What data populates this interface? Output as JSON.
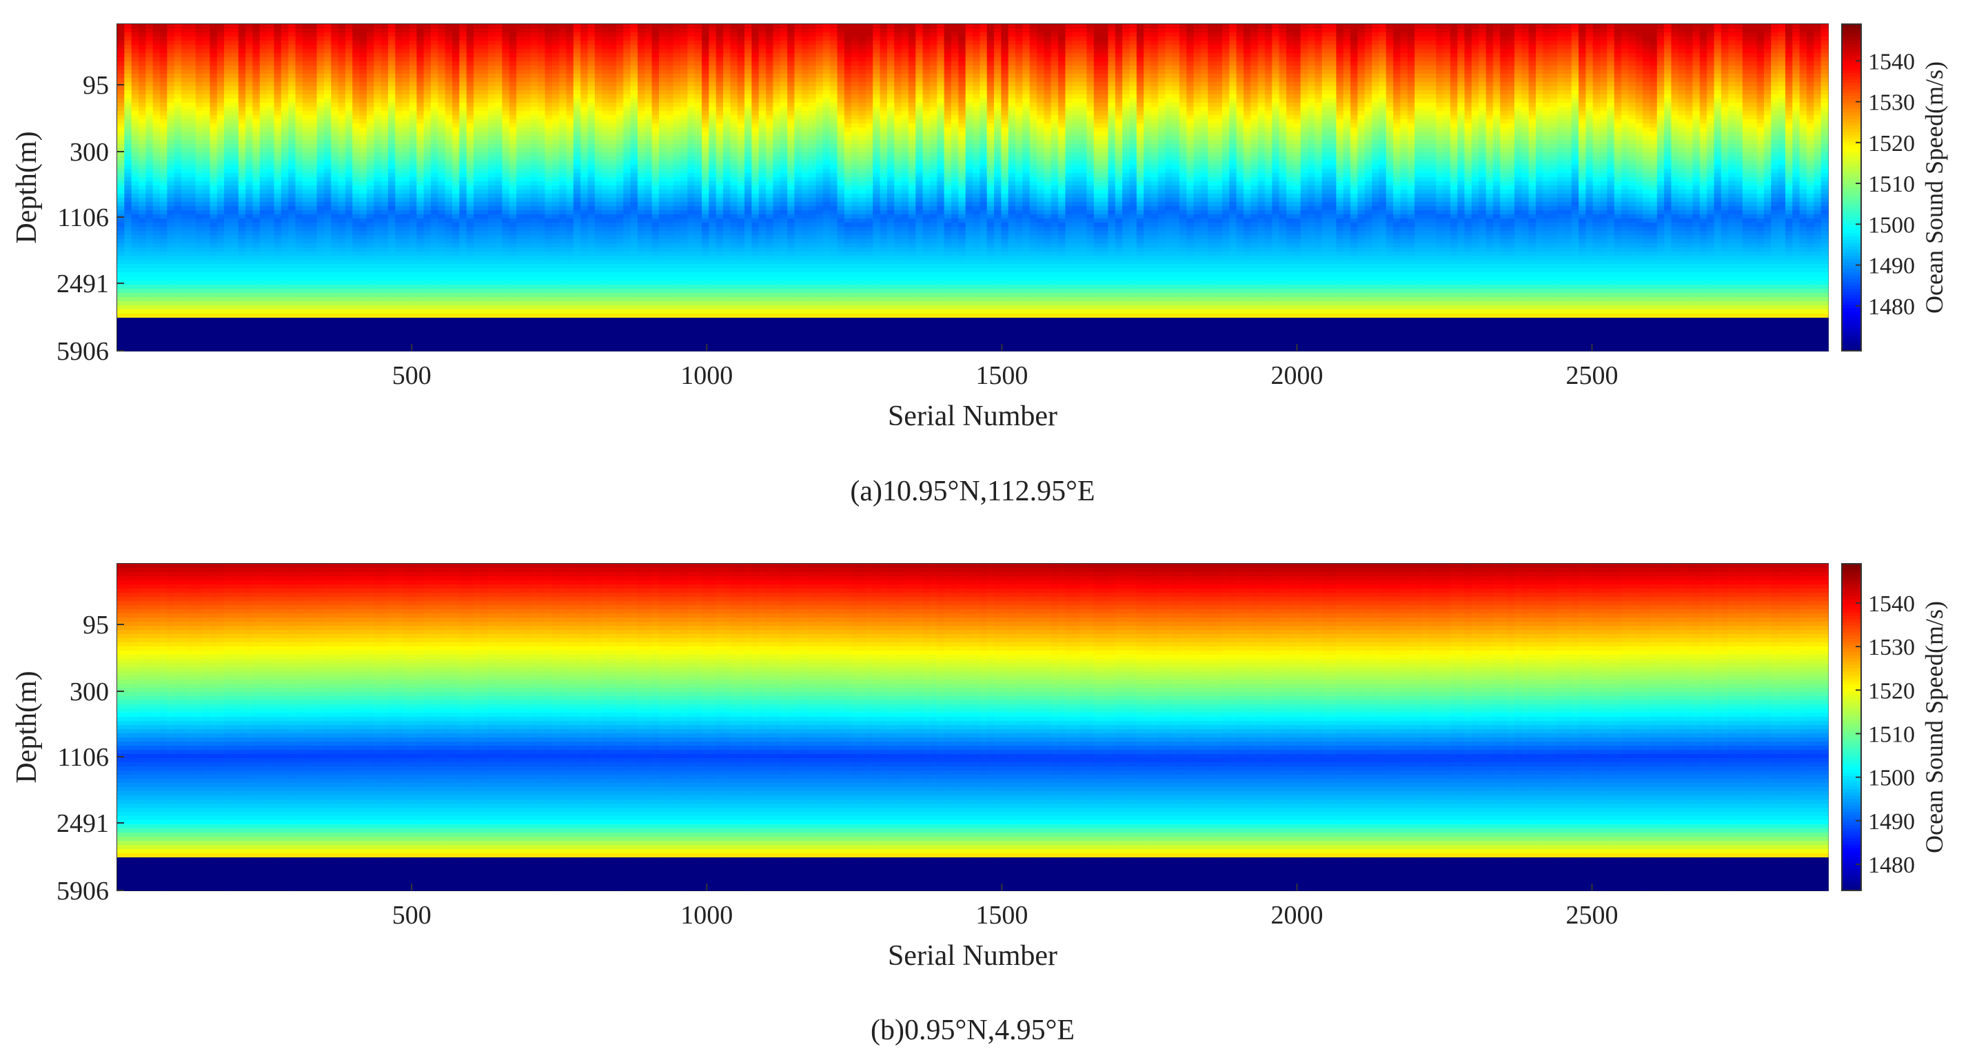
{
  "chart_data": [
    {
      "type": "heatmap",
      "panel": "a",
      "caption": "(a)10.95°N,112.95°E",
      "xlabel": "Serial Number",
      "ylabel": "Depth(m)",
      "xlim": [
        1,
        2900
      ],
      "xticks": [
        500,
        1000,
        1500,
        2000,
        2500
      ],
      "ytick_labels": [
        "95",
        "300",
        "1106",
        "2491",
        "5906"
      ],
      "colorbar": {
        "label": "Ocean Sound Speed(m/s)",
        "range": [
          1469,
          1549
        ],
        "ticks": [
          1480,
          1490,
          1500,
          1510,
          1520,
          1530,
          1540
        ]
      },
      "profile": {
        "levels": [
          "surface",
          "95",
          "300",
          "1106",
          "2491",
          "5906"
        ],
        "typical_speed": [
          1541,
          1527,
          1508,
          1487,
          1500,
          1469
        ],
        "variability": "high"
      }
    },
    {
      "type": "heatmap",
      "panel": "b",
      "caption": "(b)0.95°N,4.95°E",
      "xlabel": "Serial Number",
      "ylabel": "Depth(m)",
      "xlim": [
        1,
        2900
      ],
      "xticks": [
        500,
        1000,
        1500,
        2000,
        2500
      ],
      "ytick_labels": [
        "95",
        "300",
        "1106",
        "2491",
        "5906"
      ],
      "colorbar": {
        "label": "Ocean Sound Speed(m/s)",
        "range": [
          1474,
          1549
        ],
        "ticks": [
          1480,
          1490,
          1500,
          1510,
          1520,
          1530,
          1540
        ]
      },
      "profile": {
        "levels": [
          "surface",
          "95",
          "300",
          "1106",
          "2491",
          "5906"
        ],
        "typical_speed": [
          1542,
          1528,
          1510,
          1488,
          1502,
          1474
        ],
        "variability": "low"
      }
    }
  ]
}
